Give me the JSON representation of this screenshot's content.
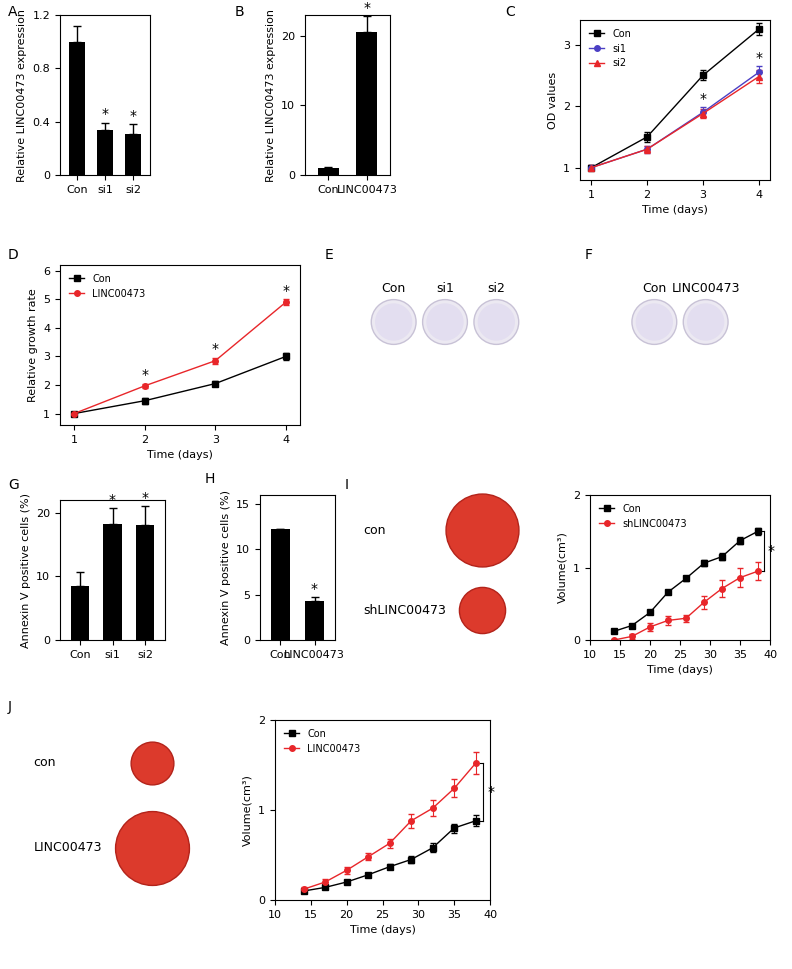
{
  "chart_data": [
    {
      "panel": "A",
      "type": "bar",
      "categories": [
        "Con",
        "si1",
        "si2"
      ],
      "values": [
        1.0,
        0.34,
        0.31
      ],
      "errors": [
        0.12,
        0.05,
        0.07
      ],
      "marks": [
        null,
        "*",
        "*"
      ],
      "color": "#000000",
      "ylabel": "Relative LINC00473 expression",
      "ylim": [
        0,
        1.2
      ],
      "yticks": [
        0,
        0.4,
        0.8,
        1.2
      ],
      "grid": false
    },
    {
      "panel": "B",
      "type": "bar",
      "categories": [
        "Con",
        "LINC00473"
      ],
      "values": [
        1.0,
        20.5
      ],
      "errors": [
        0.2,
        2.3
      ],
      "marks": [
        null,
        "*"
      ],
      "color": "#000000",
      "ylabel": "Relative LINC00473 expression",
      "ylim": [
        0,
        23
      ],
      "yticks": [
        0,
        10,
        20
      ],
      "grid": false
    },
    {
      "panel": "C",
      "type": "line",
      "x": [
        1,
        2,
        3,
        4
      ],
      "xlabel": "Time (days)",
      "ylabel": "OD values",
      "xlim": [
        0.8,
        4.2
      ],
      "xticks": [
        1,
        2,
        3,
        4
      ],
      "ylim": [
        0.8,
        3.4
      ],
      "yticks": [
        1,
        2,
        3
      ],
      "legend": "upper left",
      "grid": false,
      "marks": [
        null,
        null,
        "*",
        "*"
      ],
      "series": [
        {
          "name": "Con",
          "color": "#000000",
          "marker": "square",
          "values": [
            1.0,
            1.5,
            2.5,
            3.25
          ],
          "errors": [
            0.04,
            0.08,
            0.08,
            0.1
          ]
        },
        {
          "name": "si1",
          "color": "#4b3fc4",
          "marker": "circle",
          "values": [
            1.0,
            1.3,
            1.9,
            2.55
          ],
          "errors": [
            0.04,
            0.06,
            0.08,
            0.1
          ]
        },
        {
          "name": "si2",
          "color": "#e8262a",
          "marker": "triangle",
          "values": [
            1.0,
            1.3,
            1.88,
            2.48
          ],
          "errors": [
            0.04,
            0.06,
            0.08,
            0.1
          ]
        }
      ]
    },
    {
      "panel": "D",
      "type": "line",
      "x": [
        1,
        2,
        3,
        4
      ],
      "xlabel": "Time (days)",
      "ylabel": "Relative growth rate",
      "xlim": [
        0.8,
        4.2
      ],
      "xticks": [
        1,
        2,
        3,
        4
      ],
      "ylim": [
        0.6,
        6.2
      ],
      "yticks": [
        1,
        2,
        3,
        4,
        5,
        6
      ],
      "legend": "upper left",
      "grid": false,
      "marks": [
        null,
        "*",
        "*",
        "*"
      ],
      "series": [
        {
          "name": "Con",
          "color": "#000000",
          "marker": "square",
          "values": [
            1.0,
            1.45,
            2.05,
            3.0
          ],
          "errors": [
            0.04,
            0.1,
            0.1,
            0.12
          ]
        },
        {
          "name": "LINC00473",
          "color": "#e8262a",
          "marker": "circle",
          "values": [
            1.0,
            1.97,
            2.85,
            4.9
          ],
          "errors": [
            0.04,
            0.08,
            0.1,
            0.1
          ]
        }
      ]
    },
    {
      "panel": "E",
      "type": "colony_plates",
      "labels": [
        "Con",
        "si1",
        "si2"
      ]
    },
    {
      "panel": "F",
      "type": "colony_plates",
      "labels": [
        "Con",
        "LINC00473"
      ]
    },
    {
      "panel": "G",
      "type": "bar",
      "categories": [
        "Con",
        "si1",
        "si2"
      ],
      "values": [
        8.5,
        18.2,
        18.0
      ],
      "errors": [
        2.2,
        2.5,
        3.0
      ],
      "marks": [
        null,
        "*",
        "*"
      ],
      "color": "#000000",
      "ylabel": "Annexin V positive cells (%)",
      "ylim": [
        0,
        22
      ],
      "yticks": [
        0,
        10,
        20
      ],
      "grid": false
    },
    {
      "panel": "H",
      "type": "bar",
      "categories": [
        "Con",
        "LINC00473"
      ],
      "values": [
        12.2,
        4.3
      ],
      "errors": [
        0.1,
        0.4
      ],
      "marks": [
        null,
        "*"
      ],
      "color": "#000000",
      "ylabel": "Annexin V positive cells (%)",
      "ylim": [
        0,
        16
      ],
      "yticks": [
        0,
        5,
        10,
        15
      ],
      "grid": false
    },
    {
      "panel": "I",
      "type": "tumor_photo",
      "labels": [
        "con",
        "shLINC00473"
      ]
    },
    {
      "type": "line",
      "x": [
        14,
        17,
        20,
        23,
        26,
        29,
        32,
        35,
        38
      ],
      "xlabel": "Time (days)",
      "ylabel": "Volume(cm³)",
      "xlim": [
        10,
        40
      ],
      "xticks": [
        10,
        15,
        20,
        25,
        30,
        35,
        40
      ],
      "ylim": [
        0,
        2
      ],
      "yticks": [
        0,
        1,
        2
      ],
      "legend": "upper left",
      "grid": false,
      "bracket_mark": "*",
      "series": [
        {
          "name": "Con",
          "color": "#000000",
          "marker": "square",
          "values": [
            0.12,
            0.2,
            0.38,
            0.66,
            0.85,
            1.06,
            1.15,
            1.37,
            1.5
          ],
          "errors": [
            0.01,
            0.02,
            0.02,
            0.03,
            0.03,
            0.04,
            0.05,
            0.05,
            0.05
          ]
        },
        {
          "name": "shLINC00473",
          "color": "#e8262a",
          "marker": "circle",
          "values": [
            0.0,
            0.05,
            0.18,
            0.27,
            0.3,
            0.52,
            0.71,
            0.86,
            0.95
          ],
          "errors": [
            0.01,
            0.03,
            0.06,
            0.06,
            0.05,
            0.09,
            0.12,
            0.13,
            0.12
          ]
        }
      ]
    },
    {
      "panel": "J",
      "type": "tumor_photo",
      "labels": [
        "con",
        "LINC00473"
      ]
    },
    {
      "type": "line",
      "x": [
        14,
        17,
        20,
        23,
        26,
        29,
        32,
        35,
        38
      ],
      "xlabel": "Time (days)",
      "ylabel": "Volume(cm³)",
      "xlim": [
        10,
        40
      ],
      "xticks": [
        10,
        15,
        20,
        25,
        30,
        35,
        40
      ],
      "ylim": [
        0,
        2
      ],
      "yticks": [
        0,
        1,
        2
      ],
      "legend": "upper left",
      "grid": false,
      "bracket_mark": "*",
      "series": [
        {
          "name": "Con",
          "color": "#000000",
          "marker": "square",
          "values": [
            0.1,
            0.14,
            0.2,
            0.28,
            0.37,
            0.45,
            0.58,
            0.8,
            0.88
          ],
          "errors": [
            0.01,
            0.02,
            0.02,
            0.02,
            0.03,
            0.04,
            0.05,
            0.05,
            0.06
          ]
        },
        {
          "name": "LINC00473",
          "color": "#e8262a",
          "marker": "circle",
          "values": [
            0.12,
            0.2,
            0.33,
            0.48,
            0.63,
            0.88,
            1.02,
            1.24,
            1.52
          ],
          "errors": [
            0.02,
            0.03,
            0.04,
            0.04,
            0.05,
            0.08,
            0.09,
            0.1,
            0.12
          ]
        }
      ]
    }
  ]
}
